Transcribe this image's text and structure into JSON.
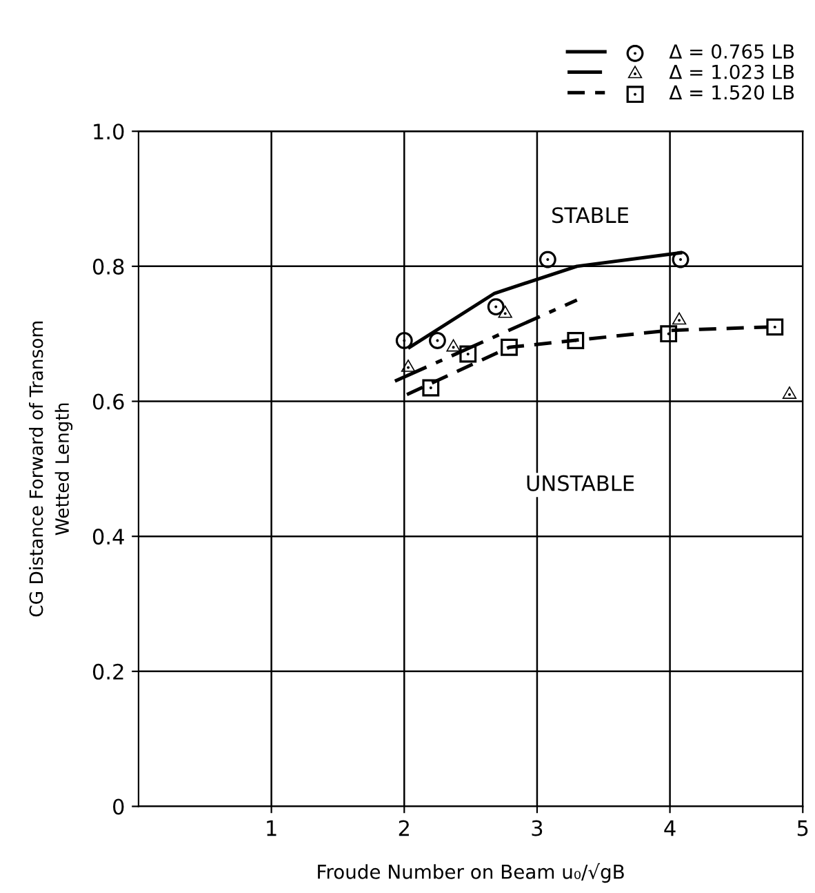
{
  "chart_data": {
    "type": "scatter",
    "xlabel": "Froude Number on Beam u₀/√gB",
    "ylabel": "CG Distance Forward of Transom\nWetted Length",
    "xlim": [
      0,
      5
    ],
    "xticks": [
      1,
      2,
      3,
      4,
      5
    ],
    "ylim": [
      0,
      1
    ],
    "yticks": [
      0,
      0.2,
      0.4,
      0.6,
      0.8,
      {
        "value": 1,
        "label": "1.0"
      }
    ],
    "grid": true,
    "legend": "top right",
    "annotations": [
      "STABLE",
      "UNSTABLE"
    ],
    "series": [
      {
        "name": "Δ = 0.765 LB",
        "marker": "circle",
        "color": "#000000",
        "x": [
          2.0,
          2.25,
          2.69,
          3.08,
          4.08
        ],
        "values": [
          0.69,
          0.69,
          0.74,
          0.81,
          0.81
        ]
      },
      {
        "type": "line",
        "line_style": "solid",
        "color": "#000000",
        "x": [
          2.04,
          2.68,
          3.3,
          4.08
        ],
        "values": [
          0.68,
          0.76,
          0.8,
          0.82
        ]
      },
      {
        "name": "Δ = 1.023 LB",
        "marker": "triangle",
        "color": "#000000",
        "x": [
          2.03,
          2.37,
          2.76,
          4.07,
          4.9
        ],
        "values": [
          0.65,
          0.68,
          0.73,
          0.72,
          0.61
        ]
      },
      {
        "type": "line",
        "line_style": "dashdot",
        "color": "#000000",
        "x": [
          1.93,
          3.3
        ],
        "values": [
          0.63,
          0.75
        ]
      },
      {
        "name": "Δ = 1.520 LB",
        "marker": "square",
        "color": "#000000",
        "x": [
          2.2,
          2.48,
          2.79,
          3.29,
          3.99,
          4.79
        ],
        "values": [
          0.62,
          0.67,
          0.68,
          0.69,
          0.7,
          0.71
        ]
      },
      {
        "type": "line",
        "line_style": "dashed",
        "color": "#000000",
        "x": [
          2.02,
          2.79,
          3.99,
          4.73
        ],
        "values": [
          0.61,
          0.68,
          0.705,
          0.71
        ]
      }
    ]
  }
}
